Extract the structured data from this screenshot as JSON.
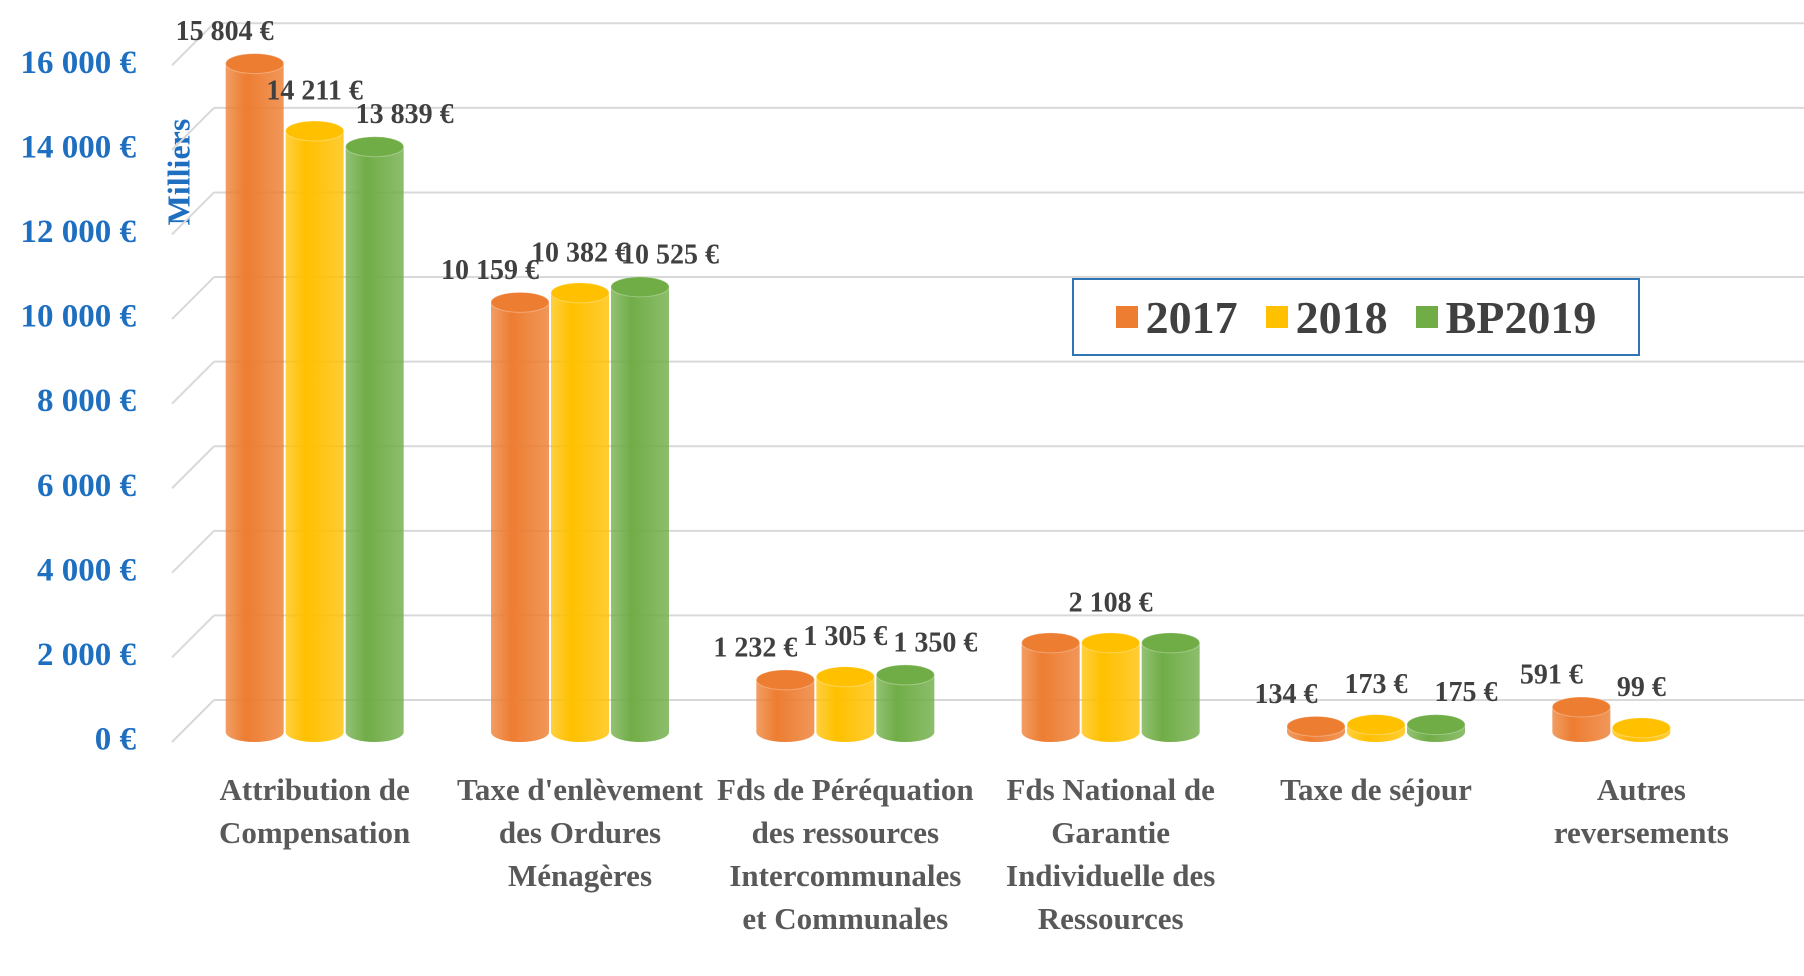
{
  "chart_data": {
    "type": "bar",
    "y_label": "Milliers",
    "categories": [
      "Attribution de Compensation",
      "Taxe d'enlèvement des Ordures Ménagères",
      "Fds de Péréquation des ressources Intercommunales et Communales",
      "Fds National de Garantie Individuelle des Ressources",
      "Taxe de séjour",
      "Autres reversements"
    ],
    "series": [
      {
        "name": "2017",
        "color": "#ed7d31",
        "values": [
          15804,
          10159,
          1232,
          2108,
          134,
          591
        ],
        "value_labels": [
          "15 804 €",
          "10 159 €",
          "1 232 €",
          null,
          "134 €",
          "591 €"
        ]
      },
      {
        "name": "2018",
        "color": "#ffc000",
        "values": [
          14211,
          10382,
          1305,
          2108,
          173,
          99
        ],
        "value_labels": [
          "14 211 €",
          "10 382 €",
          "1 305 €",
          "2 108 €",
          "173 €",
          "99 €"
        ]
      },
      {
        "name": "BP2019",
        "color": "#70ad47",
        "values": [
          13839,
          10525,
          1350,
          2108,
          175,
          null
        ],
        "value_labels": [
          "13 839 €",
          "10 525 €",
          "1 350 €",
          null,
          "175 €",
          null
        ]
      }
    ],
    "ylim": [
      0,
      17000
    ],
    "yticks": [
      {
        "value": 0,
        "label": "0 €"
      },
      {
        "value": 2000,
        "label": "2 000 €"
      },
      {
        "value": 4000,
        "label": "4 000 €"
      },
      {
        "value": 6000,
        "label": "6 000 €"
      },
      {
        "value": 8000,
        "label": "8 000 €"
      },
      {
        "value": 10000,
        "label": "10 000 €"
      },
      {
        "value": 12000,
        "label": "12 000 €"
      },
      {
        "value": 14000,
        "label": "14 000 €"
      },
      {
        "value": 16000,
        "label": "16 000 €"
      }
    ],
    "grid": true,
    "legend": "right"
  }
}
